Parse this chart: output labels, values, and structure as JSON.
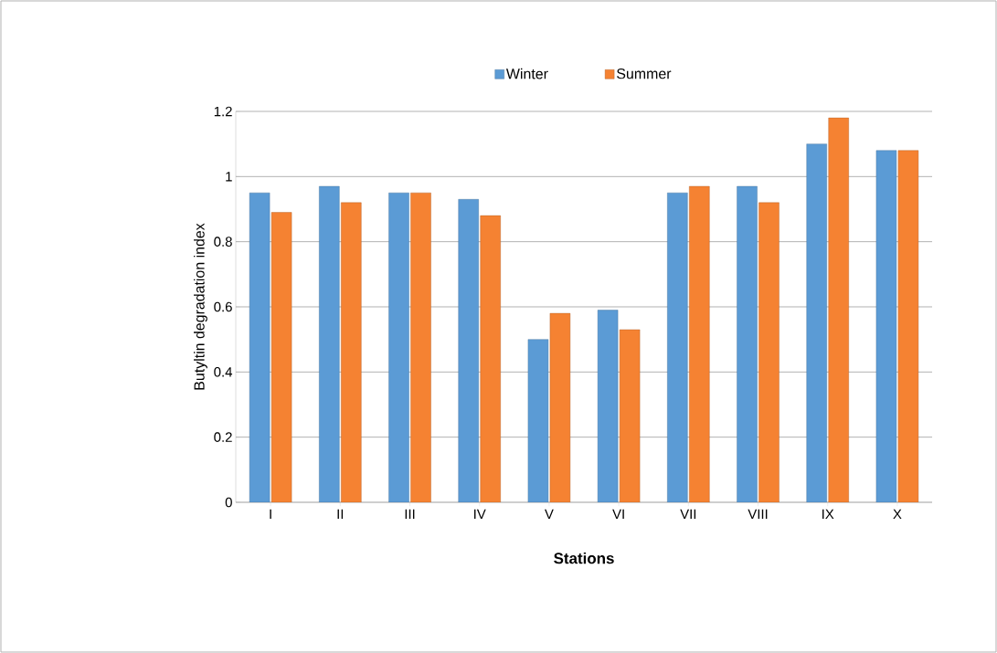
{
  "chart_data": {
    "type": "bar",
    "xlabel": "Stations",
    "ylabel": "Butyltin degradation index",
    "categories": [
      "I",
      "II",
      "III",
      "IV",
      "V",
      "VI",
      "VII",
      "VIII",
      "IX",
      "X"
    ],
    "series": [
      {
        "name": "Winter",
        "color": "#5b9bd5",
        "values": [
          0.95,
          0.97,
          0.95,
          0.93,
          0.5,
          0.59,
          0.95,
          0.97,
          1.1,
          1.08
        ]
      },
      {
        "name": "Summer",
        "color": "#f58232",
        "values": [
          0.89,
          0.92,
          0.95,
          0.88,
          0.58,
          0.53,
          0.97,
          0.92,
          1.18,
          1.08
        ]
      }
    ],
    "ylim": [
      0,
      1.2
    ],
    "yticks": [
      0,
      0.2,
      0.4,
      0.6,
      0.8,
      1,
      1.2
    ],
    "grid": "y",
    "legend": "top"
  }
}
